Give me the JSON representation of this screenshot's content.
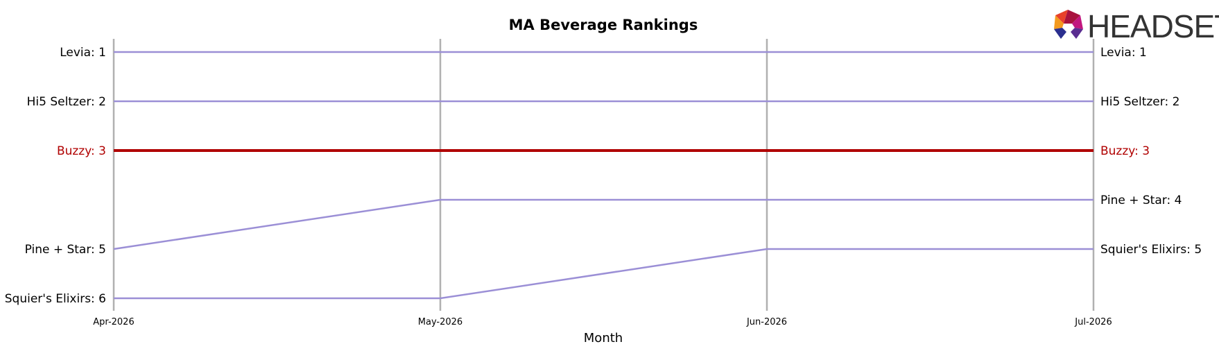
{
  "chart_data": {
    "type": "line",
    "title": "MA Beverage Rankings",
    "xlabel": "Month",
    "ylabel": "",
    "x": [
      "Apr-2026",
      "May-2026",
      "Jun-2026",
      "Jul-2026"
    ],
    "ylim": [
      1,
      6
    ],
    "y_inverted": true,
    "grid": "vertical",
    "highlight_color": "#b00000",
    "default_color": "#9b8fd6",
    "series": [
      {
        "name": "Levia",
        "values": [
          1,
          1,
          1,
          1
        ],
        "left_label": "Levia: 1",
        "right_label": "Levia: 1",
        "highlight": false
      },
      {
        "name": "Hi5 Seltzer",
        "values": [
          2,
          2,
          2,
          2
        ],
        "left_label": "Hi5 Seltzer: 2",
        "right_label": "Hi5 Seltzer: 2",
        "highlight": false
      },
      {
        "name": "Buzzy",
        "values": [
          3,
          3,
          3,
          3
        ],
        "left_label": "Buzzy: 3",
        "right_label": "Buzzy: 3",
        "highlight": true
      },
      {
        "name": "Pine + Star",
        "values": [
          5,
          4,
          4,
          4
        ],
        "left_label": "Pine + Star: 5",
        "right_label": "Pine + Star: 4",
        "highlight": false
      },
      {
        "name": "Squier's Elixirs",
        "values": [
          6,
          6,
          5,
          5
        ],
        "left_label": "Squier's Elixirs: 6",
        "right_label": "Squier's Elixirs: 5",
        "highlight": false
      }
    ]
  },
  "logo": {
    "text": "HEADSET",
    "colors": [
      "#e8412a",
      "#f39a1f",
      "#a8123e",
      "#c2167f",
      "#2b2f8f",
      "#5a2d91"
    ]
  }
}
